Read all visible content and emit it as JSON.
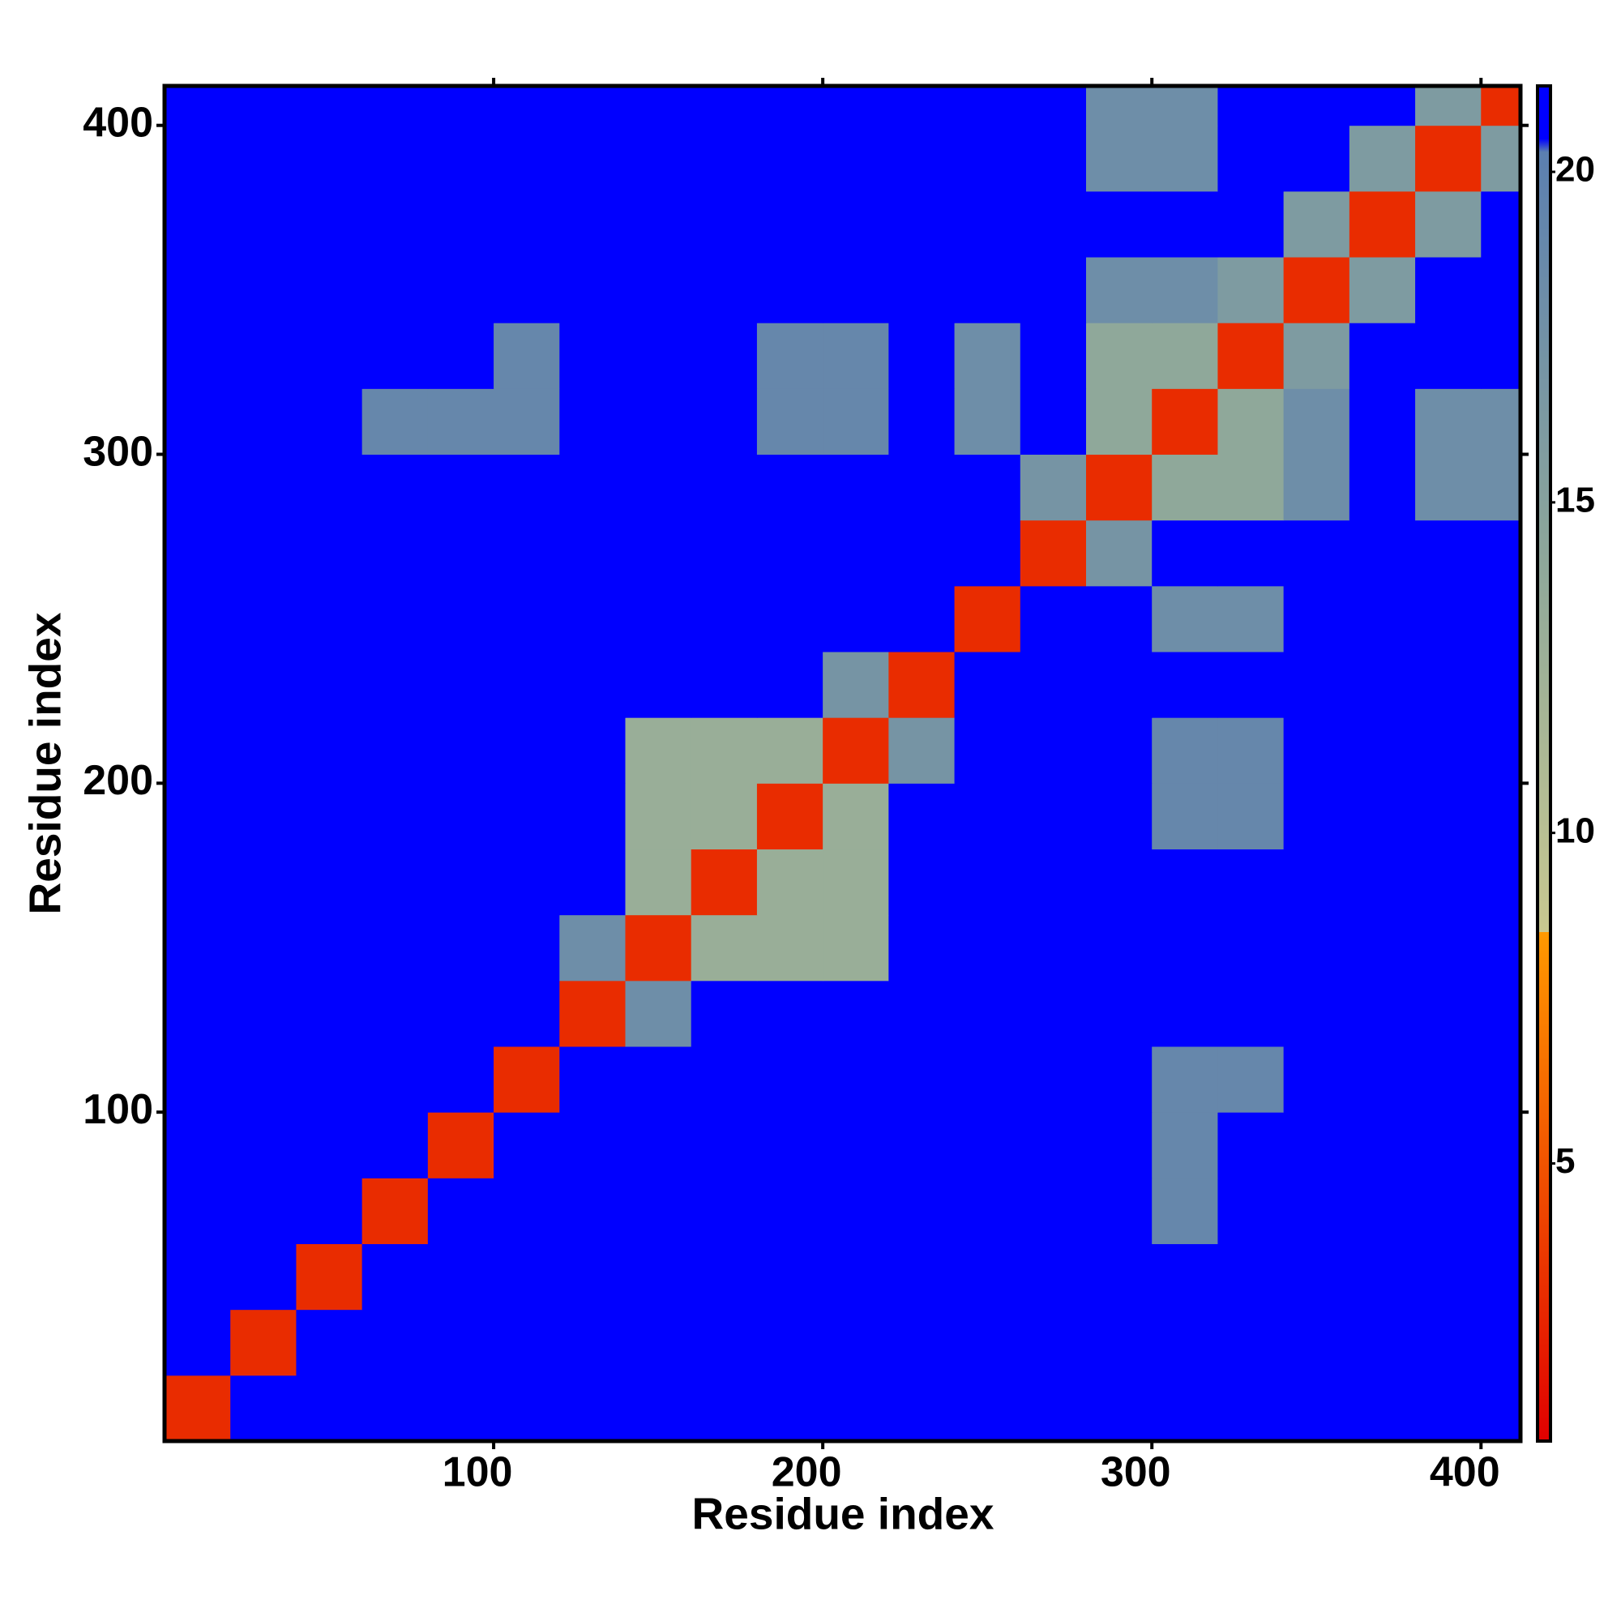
{
  "chart_data": {
    "type": "heatmap",
    "xlabel": "Residue index",
    "ylabel": "Residue index",
    "xbins": [
      0,
      20,
      40,
      60,
      80,
      100,
      120,
      140,
      160,
      180,
      200,
      220,
      240,
      260,
      280,
      300,
      320,
      340,
      360,
      380,
      400,
      412
    ],
    "ybins": [
      0,
      20,
      40,
      60,
      80,
      100,
      120,
      140,
      160,
      180,
      200,
      220,
      240,
      260,
      280,
      300,
      320,
      340,
      360,
      380,
      400,
      412
    ],
    "xlim": [
      0,
      412
    ],
    "ylim": [
      0,
      412
    ],
    "xticks": [
      100,
      200,
      300,
      400
    ],
    "yticks": [
      100,
      200,
      300,
      400
    ],
    "clim": [
      0.8,
      21.3
    ],
    "colorbar_ticks": [
      5,
      10,
      15,
      20
    ],
    "colorscale": [
      [
        0.8,
        "#e00000"
      ],
      [
        8.5,
        "#ff9900"
      ],
      [
        8.5,
        "#c8c890"
      ],
      [
        14,
        "#8fa89a"
      ],
      [
        20.3,
        "#5b7fb0"
      ],
      [
        20.5,
        "#0000ff"
      ],
      [
        21.3,
        "#0000ff"
      ]
    ],
    "values": [
      [
        3,
        21,
        21,
        21,
        21,
        21,
        21,
        21,
        21,
        21,
        21,
        21,
        21,
        21,
        21,
        21,
        21,
        21,
        21,
        21,
        21
      ],
      [
        21,
        3,
        21,
        21,
        21,
        21,
        21,
        21,
        21,
        21,
        21,
        21,
        21,
        21,
        21,
        21,
        21,
        21,
        21,
        21,
        21
      ],
      [
        21,
        21,
        3,
        21,
        21,
        21,
        21,
        21,
        21,
        21,
        21,
        21,
        21,
        21,
        21,
        21,
        21,
        21,
        21,
        21,
        21
      ],
      [
        21,
        21,
        21,
        3,
        21,
        21,
        21,
        21,
        21,
        21,
        21,
        21,
        21,
        21,
        21,
        19,
        21,
        21,
        21,
        21,
        21
      ],
      [
        21,
        21,
        21,
        21,
        3,
        21,
        21,
        21,
        21,
        21,
        21,
        21,
        21,
        21,
        21,
        19,
        21,
        21,
        21,
        21,
        21
      ],
      [
        21,
        21,
        21,
        21,
        21,
        3,
        21,
        21,
        21,
        21,
        21,
        21,
        21,
        21,
        21,
        19,
        19,
        21,
        21,
        21,
        21
      ],
      [
        21,
        21,
        21,
        21,
        21,
        21,
        3,
        18,
        21,
        21,
        21,
        21,
        21,
        21,
        21,
        21,
        21,
        21,
        21,
        21,
        21
      ],
      [
        21,
        21,
        21,
        21,
        21,
        21,
        18,
        3,
        13,
        13,
        13,
        21,
        21,
        21,
        21,
        21,
        21,
        21,
        21,
        21,
        21
      ],
      [
        21,
        21,
        21,
        21,
        21,
        21,
        21,
        13,
        3,
        13,
        13,
        21,
        21,
        21,
        21,
        21,
        21,
        21,
        21,
        21,
        21
      ],
      [
        21,
        21,
        21,
        21,
        21,
        21,
        21,
        13,
        13,
        3,
        13,
        21,
        21,
        21,
        21,
        19,
        19,
        21,
        21,
        21,
        21
      ],
      [
        21,
        21,
        21,
        21,
        21,
        21,
        21,
        13,
        13,
        13,
        3,
        17,
        21,
        21,
        21,
        19,
        19,
        21,
        21,
        21,
        21
      ],
      [
        21,
        21,
        21,
        21,
        21,
        21,
        21,
        21,
        21,
        21,
        17,
        3,
        21,
        21,
        21,
        21,
        21,
        21,
        21,
        21,
        21
      ],
      [
        21,
        21,
        21,
        21,
        21,
        21,
        21,
        21,
        21,
        21,
        21,
        21,
        3,
        21,
        21,
        18,
        18,
        21,
        21,
        21,
        21
      ],
      [
        21,
        21,
        21,
        21,
        21,
        21,
        21,
        21,
        21,
        21,
        21,
        21,
        21,
        3,
        17,
        21,
        21,
        21,
        21,
        21,
        21
      ],
      [
        21,
        21,
        21,
        21,
        21,
        21,
        21,
        21,
        21,
        21,
        21,
        21,
        21,
        17,
        3,
        14,
        14,
        18,
        21,
        18,
        18
      ],
      [
        21,
        21,
        21,
        19,
        19,
        19,
        21,
        21,
        21,
        19,
        19,
        21,
        18,
        21,
        14,
        3,
        14,
        18,
        21,
        18,
        18
      ],
      [
        21,
        21,
        21,
        21,
        21,
        19,
        21,
        21,
        21,
        19,
        19,
        21,
        18,
        21,
        14,
        14,
        3,
        16,
        21,
        21,
        21
      ],
      [
        21,
        21,
        21,
        21,
        21,
        21,
        21,
        21,
        21,
        21,
        21,
        21,
        21,
        21,
        18,
        18,
        16,
        3,
        16,
        21,
        21
      ],
      [
        21,
        21,
        21,
        21,
        21,
        21,
        21,
        21,
        21,
        21,
        21,
        21,
        21,
        21,
        21,
        21,
        21,
        16,
        3,
        16,
        21
      ],
      [
        21,
        21,
        21,
        21,
        21,
        21,
        21,
        21,
        21,
        21,
        21,
        21,
        21,
        21,
        18,
        18,
        21,
        21,
        16,
        3,
        16
      ],
      [
        21,
        21,
        21,
        21,
        21,
        21,
        21,
        21,
        21,
        21,
        21,
        21,
        21,
        21,
        18,
        18,
        21,
        21,
        21,
        16,
        3
      ]
    ]
  }
}
